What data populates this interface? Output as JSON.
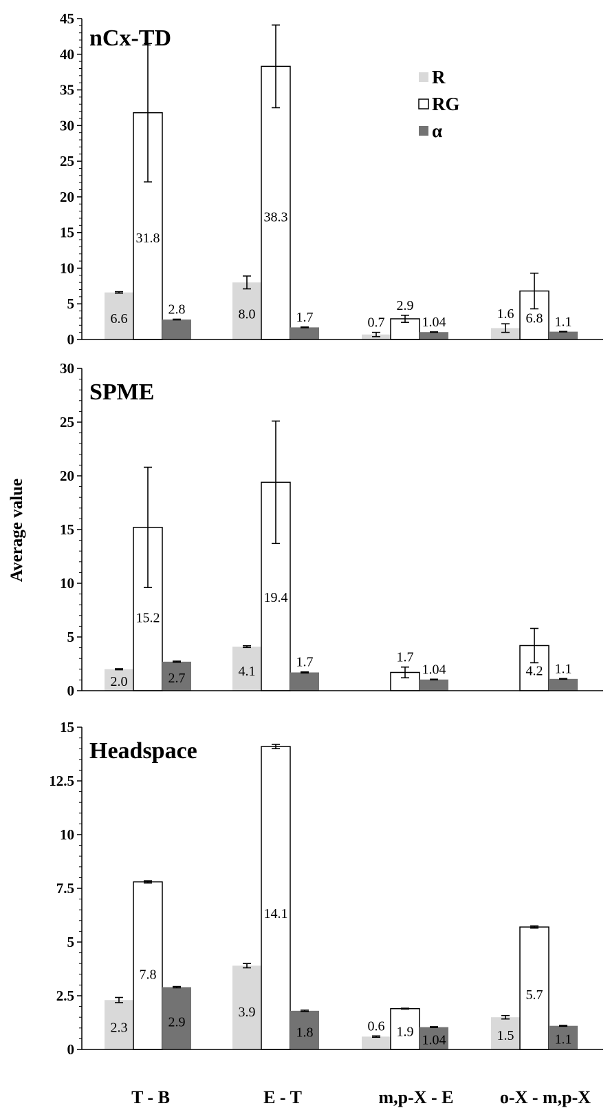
{
  "figure": {
    "ylabel": "Average value",
    "categories": [
      "T - B",
      "E - T",
      "m,p-X - E",
      "o-X - m,p-X"
    ],
    "legend": [
      {
        "name": "R",
        "color": "#d9d9d9",
        "stroke": "none"
      },
      {
        "name": "RG",
        "color": "#ffffff",
        "stroke": "#000000"
      },
      {
        "name": "α",
        "color": "#737373",
        "stroke": "none"
      }
    ],
    "legend_placement": "top-right of first panel",
    "colors": {
      "R": "#d9d9d9",
      "RG": "#ffffff",
      "alpha": "#737373",
      "axis": "#000000"
    }
  },
  "chart_data": [
    {
      "type": "bar",
      "title": "nCx-TD",
      "ylim": [
        0,
        45
      ],
      "yticks": [
        0,
        5,
        10,
        15,
        20,
        25,
        30,
        35,
        40,
        45
      ],
      "ytick_labels": [
        "0",
        "5",
        "10",
        "15",
        "20",
        "25",
        "30",
        "35",
        "40",
        "45"
      ],
      "categories": [
        "T - B",
        "E - T",
        "m,p-X - E",
        "o-X - m,p-X"
      ],
      "series": [
        {
          "name": "R",
          "values": [
            6.6,
            8.0,
            0.7,
            1.6
          ],
          "errors": [
            0.1,
            0.9,
            0.3,
            0.6
          ],
          "labels": [
            "6.6",
            "8.0",
            "0.7",
            "1.6"
          ],
          "label_pos": [
            "inside",
            "inside",
            "above",
            "above"
          ]
        },
        {
          "name": "RG",
          "values": [
            31.8,
            38.3,
            2.9,
            6.8
          ],
          "errors": [
            9.7,
            5.8,
            0.5,
            2.5
          ],
          "labels": [
            "31.8",
            "38.3",
            "2.9",
            "6.8"
          ],
          "label_pos": [
            "inside",
            "inside",
            "above",
            "inside"
          ]
        },
        {
          "name": "α",
          "values": [
            2.8,
            1.7,
            1.04,
            1.1
          ],
          "errors": [
            0.05,
            0.05,
            0.03,
            0.03
          ],
          "labels": [
            "2.8",
            "1.7",
            "1.04",
            "1.1"
          ],
          "label_pos": [
            "above",
            "above",
            "above",
            "above"
          ]
        }
      ]
    },
    {
      "type": "bar",
      "title": "SPME",
      "ylim": [
        0,
        30
      ],
      "yticks": [
        0,
        5,
        10,
        15,
        20,
        25,
        30
      ],
      "ytick_labels": [
        "0",
        "5",
        "10",
        "15",
        "20",
        "25",
        "30"
      ],
      "categories": [
        "T - B",
        "E - T",
        "m,p-X - E",
        "o-X - m,p-X"
      ],
      "series": [
        {
          "name": "R",
          "values": [
            2.0,
            4.1,
            null,
            null
          ],
          "errors": [
            0.05,
            0.08,
            null,
            null
          ],
          "labels": [
            "2.0",
            "4.1",
            null,
            null
          ],
          "label_pos": [
            "inside",
            "inside",
            null,
            null
          ]
        },
        {
          "name": "RG",
          "values": [
            15.2,
            19.4,
            1.7,
            4.2
          ],
          "errors": [
            5.6,
            5.7,
            0.5,
            1.6
          ],
          "labels": [
            "15.2",
            "19.4",
            "1.7",
            "4.2"
          ],
          "label_pos": [
            "inside",
            "inside",
            "above",
            "inside"
          ]
        },
        {
          "name": "α",
          "values": [
            2.7,
            1.7,
            1.04,
            1.1
          ],
          "errors": [
            0.05,
            0.05,
            0.03,
            0.03
          ],
          "labels": [
            "2.7",
            "1.7",
            "1.04",
            "1.1"
          ],
          "label_pos": [
            "inside",
            "above",
            "above",
            "above"
          ]
        }
      ]
    },
    {
      "type": "bar",
      "title": "Headspace",
      "ylim": [
        0,
        15
      ],
      "yticks": [
        0,
        2.5,
        5,
        7.5,
        10,
        12.5,
        15
      ],
      "ytick_labels": [
        "0",
        "2.5",
        "5",
        "7.5",
        "10",
        "12.5",
        "15"
      ],
      "categories": [
        "T - B",
        "E - T",
        "m,p-X - E",
        "o-X - m,p-X"
      ],
      "series": [
        {
          "name": "R",
          "values": [
            2.3,
            3.9,
            0.6,
            1.5
          ],
          "errors": [
            0.12,
            0.1,
            0.03,
            0.08
          ],
          "labels": [
            "2.3",
            "3.9",
            "0.6",
            "1.5"
          ],
          "label_pos": [
            "inside",
            "inside",
            "above",
            "inside"
          ]
        },
        {
          "name": "RG",
          "values": [
            7.8,
            14.1,
            1.9,
            5.7
          ],
          "errors": [
            0.05,
            0.1,
            0.02,
            0.05
          ],
          "labels": [
            "7.8",
            "14.1",
            "1.9",
            "5.7"
          ],
          "label_pos": [
            "inside",
            "inside",
            "inside",
            "inside"
          ]
        },
        {
          "name": "α",
          "values": [
            2.9,
            1.8,
            1.04,
            1.1
          ],
          "errors": [
            0.03,
            0.03,
            0.02,
            0.02
          ],
          "labels": [
            "2.9",
            "1.8",
            "1.04",
            "1.1"
          ],
          "label_pos": [
            "inside",
            "inside",
            "inside",
            "inside"
          ]
        }
      ]
    }
  ]
}
